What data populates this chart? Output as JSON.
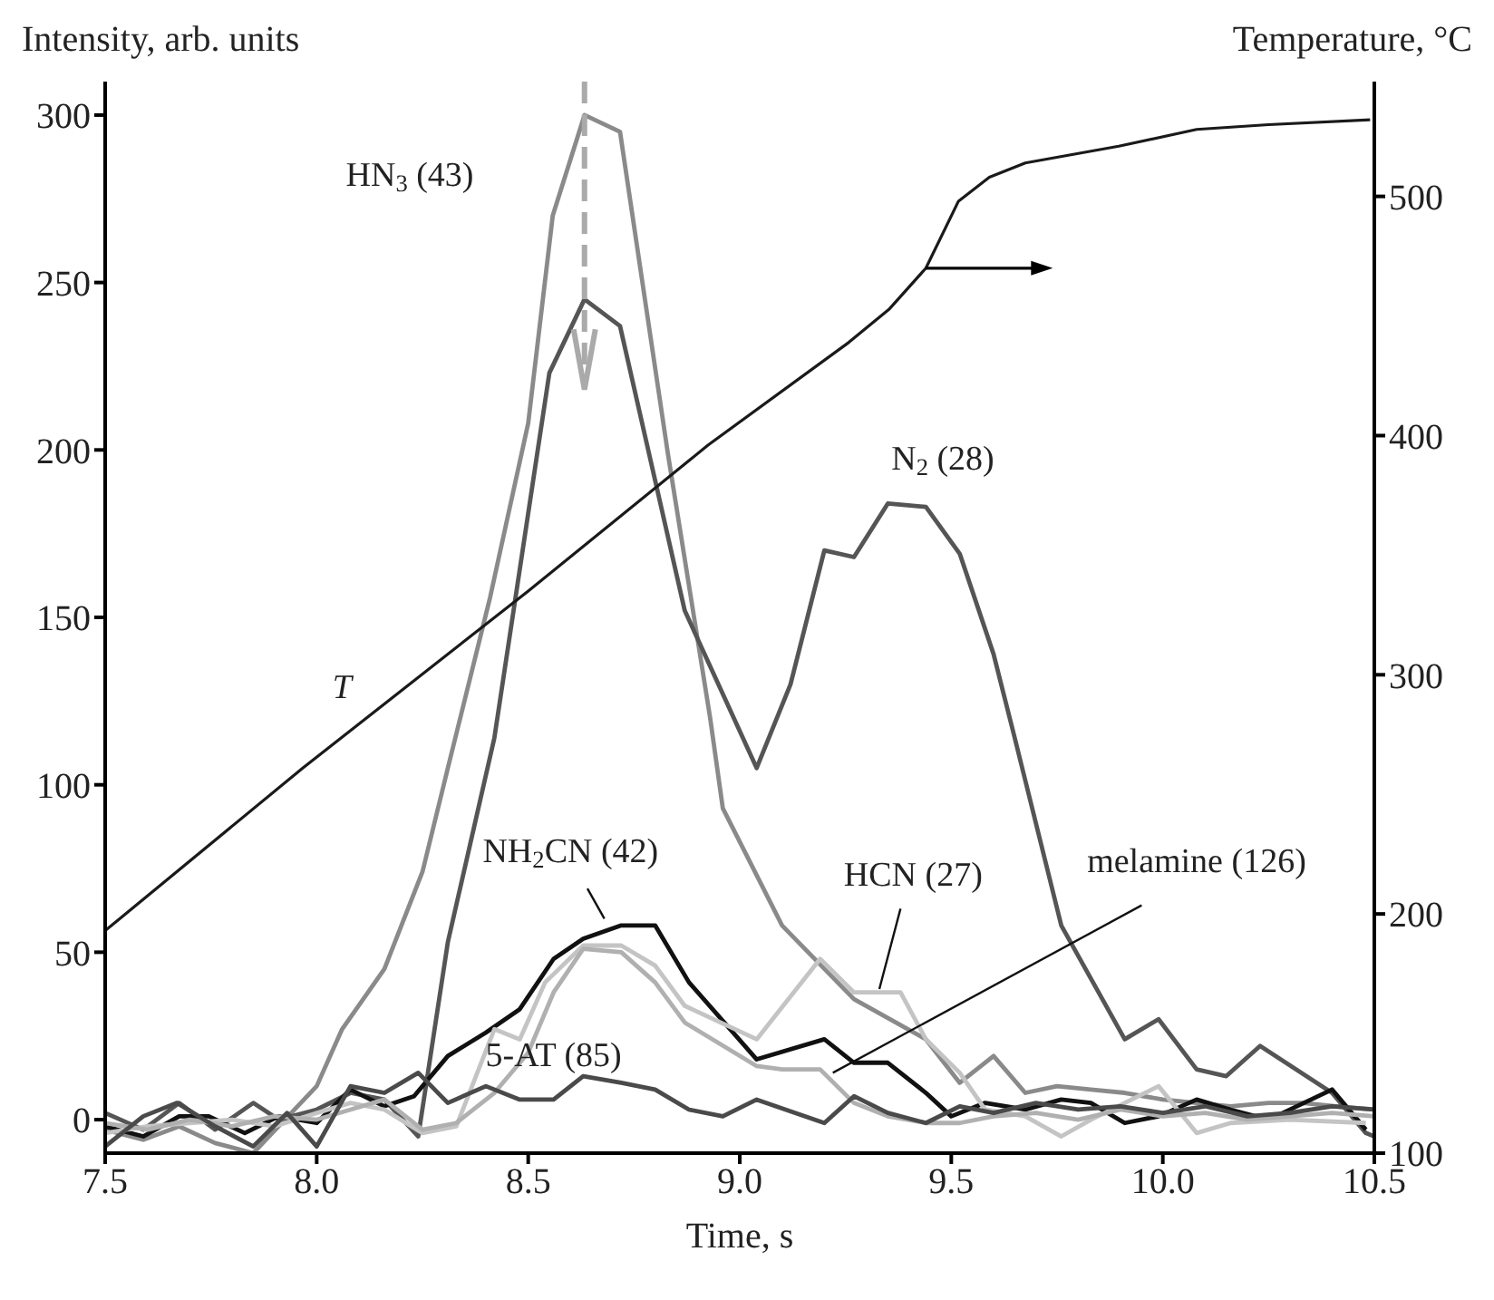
{
  "chart_data": {
    "type": "line",
    "xlabel": "Time, s",
    "ylabel": "Intensity, arb. units",
    "y2label": "Temperature, °C",
    "xlim": [
      7.5,
      10.5
    ],
    "xticks": [
      7.5,
      {
        "value": 8,
        "label": "8.0"
      },
      8.5,
      {
        "value": 9,
        "label": "9.0"
      },
      9.5,
      {
        "value": 10,
        "label": "10.0"
      },
      10.5
    ],
    "ylim": [
      -10,
      310
    ],
    "yticks": [
      0,
      50,
      100,
      150,
      200,
      250,
      300
    ],
    "y2lim": [
      100,
      548
    ],
    "y2ticks": [
      100,
      200,
      300,
      400,
      500
    ],
    "marker": "none",
    "series": [
      {
        "name": "HN$_{3}$ (43)",
        "color": "#8a8a8a",
        "x": [
          7.5,
          7.59,
          7.675,
          7.76,
          7.85,
          7.91,
          8.0,
          8.06,
          8.16,
          8.25,
          8.31,
          8.41,
          8.5,
          8.558,
          8.633,
          8.717,
          8.83,
          8.93,
          8.96,
          9.1,
          9.27,
          9.44,
          9.52,
          9.6,
          9.675,
          9.75,
          9.83,
          9.91,
          10.0,
          10.08,
          10.16,
          10.25,
          10.33,
          10.41,
          10.5
        ],
        "values": [
          -3,
          -6,
          -2,
          -7,
          -10,
          -2,
          10,
          27,
          45,
          74,
          105,
          156,
          208,
          270,
          300,
          295,
          199,
          120,
          93,
          58,
          36,
          24,
          11,
          19,
          8,
          10,
          9,
          8,
          6,
          5,
          4,
          5,
          5,
          4,
          3
        ]
      },
      {
        "name": "N$_{2}$ (28)",
        "color": "#555555",
        "x": [
          7.5,
          7.59,
          7.675,
          7.76,
          7.85,
          7.91,
          8.0,
          8.08,
          8.16,
          8.24,
          8.31,
          8.42,
          8.55,
          8.633,
          8.717,
          8.87,
          9.04,
          9.12,
          9.2,
          9.27,
          9.35,
          9.44,
          9.52,
          9.6,
          9.65,
          9.76,
          9.91,
          9.99,
          10.08,
          10.15,
          10.23,
          10.4,
          10.48,
          10.5
        ],
        "values": [
          2,
          -3,
          5,
          -3,
          5,
          0,
          3,
          8,
          6,
          -5,
          53,
          114,
          223,
          245,
          237,
          152,
          105,
          130,
          170,
          168,
          184,
          183,
          169,
          139,
          114,
          58,
          24,
          30,
          15,
          13,
          22,
          8,
          -4,
          -5
        ]
      },
      {
        "name": "NH$_{2}$CN (42)",
        "color": "#111111",
        "x": [
          7.5,
          7.59,
          7.675,
          7.745,
          7.83,
          7.91,
          8.0,
          8.08,
          8.16,
          8.23,
          8.31,
          8.4,
          8.48,
          8.56,
          8.63,
          8.72,
          8.8,
          8.88,
          9.04,
          9.2,
          9.27,
          9.35,
          9.44,
          9.5,
          9.58,
          9.675,
          9.76,
          9.83,
          9.91,
          9.99,
          10.08,
          10.16,
          10.25,
          10.4,
          10.48
        ],
        "values": [
          -2,
          -5,
          1,
          1,
          -4,
          1,
          -1,
          9,
          4,
          7,
          19,
          26,
          33,
          48,
          54,
          58,
          58,
          41,
          18,
          24,
          17,
          17,
          8,
          1,
          5,
          3,
          6,
          5,
          -1,
          1,
          6,
          3,
          0,
          9,
          -3
        ]
      },
      {
        "name": "HCN (27)",
        "color": "#c4c4c4",
        "x": [
          7.5,
          7.6,
          7.7,
          7.8,
          7.9,
          8.0,
          8.08,
          8.16,
          8.25,
          8.33,
          8.42,
          8.48,
          8.54,
          8.63,
          8.72,
          8.8,
          8.87,
          9.04,
          9.19,
          9.27,
          9.38,
          9.44,
          9.52,
          9.58,
          9.675,
          9.76,
          9.83,
          9.99,
          10.08,
          10.16,
          10.3,
          10.48
        ],
        "values": [
          -4,
          -2,
          -1,
          0,
          -2,
          2,
          5,
          3,
          -4,
          -2,
          27,
          24,
          41,
          52,
          52,
          46,
          34,
          24,
          48,
          38,
          38,
          24,
          14,
          3,
          1,
          -5,
          0,
          10,
          -4,
          -1,
          0,
          -1
        ]
      },
      {
        "name": "melamine (126)",
        "color": "#b0b0b0",
        "x": [
          7.5,
          7.6,
          7.7,
          7.8,
          7.9,
          8.0,
          8.08,
          8.16,
          8.25,
          8.33,
          8.42,
          8.5,
          8.56,
          8.63,
          8.72,
          8.8,
          8.87,
          9.04,
          9.1,
          9.19,
          9.27,
          9.35,
          9.44,
          9.52,
          9.6,
          9.7,
          9.8,
          9.9,
          10.0,
          10.1,
          10.2,
          10.3,
          10.4,
          10.5
        ],
        "values": [
          -1,
          -3,
          0,
          -2,
          1,
          0,
          3,
          6,
          -3,
          -1,
          8,
          20,
          38,
          51,
          50,
          41,
          29,
          16,
          15,
          15,
          5,
          1,
          -1,
          -1,
          1,
          2,
          0,
          3,
          1,
          2,
          0,
          1,
          2,
          1
        ]
      },
      {
        "name": "5-AT (85)",
        "color": "#4a4a4a",
        "x": [
          7.5,
          7.59,
          7.67,
          7.76,
          7.85,
          7.93,
          8.0,
          8.08,
          8.16,
          8.24,
          8.31,
          8.4,
          8.48,
          8.56,
          8.63,
          8.72,
          8.8,
          8.88,
          8.96,
          9.04,
          9.2,
          9.27,
          9.35,
          9.44,
          9.52,
          9.6,
          9.7,
          9.8,
          9.9,
          10.0,
          10.1,
          10.2,
          10.3,
          10.4,
          10.5
        ],
        "values": [
          -8,
          1,
          5,
          -2,
          -8,
          2,
          -8,
          10,
          8,
          14,
          5,
          10,
          6,
          6,
          13,
          11,
          9,
          3,
          1,
          6,
          -1,
          7,
          2,
          -1,
          4,
          2,
          5,
          3,
          4,
          2,
          4,
          1,
          2,
          4,
          3
        ]
      },
      {
        "name": "T",
        "color": "#1a1a1a",
        "axis": "y2",
        "x": [
          7.5,
          7.967,
          8.5,
          8.925,
          9.258,
          9.354,
          9.44,
          9.517,
          9.59,
          9.675,
          9.896,
          10.08,
          10.25,
          10.49
        ],
        "values": [
          193,
          261,
          335,
          396,
          439,
          453,
          470,
          498,
          508,
          514,
          521,
          528,
          530,
          532
        ]
      }
    ]
  }
}
